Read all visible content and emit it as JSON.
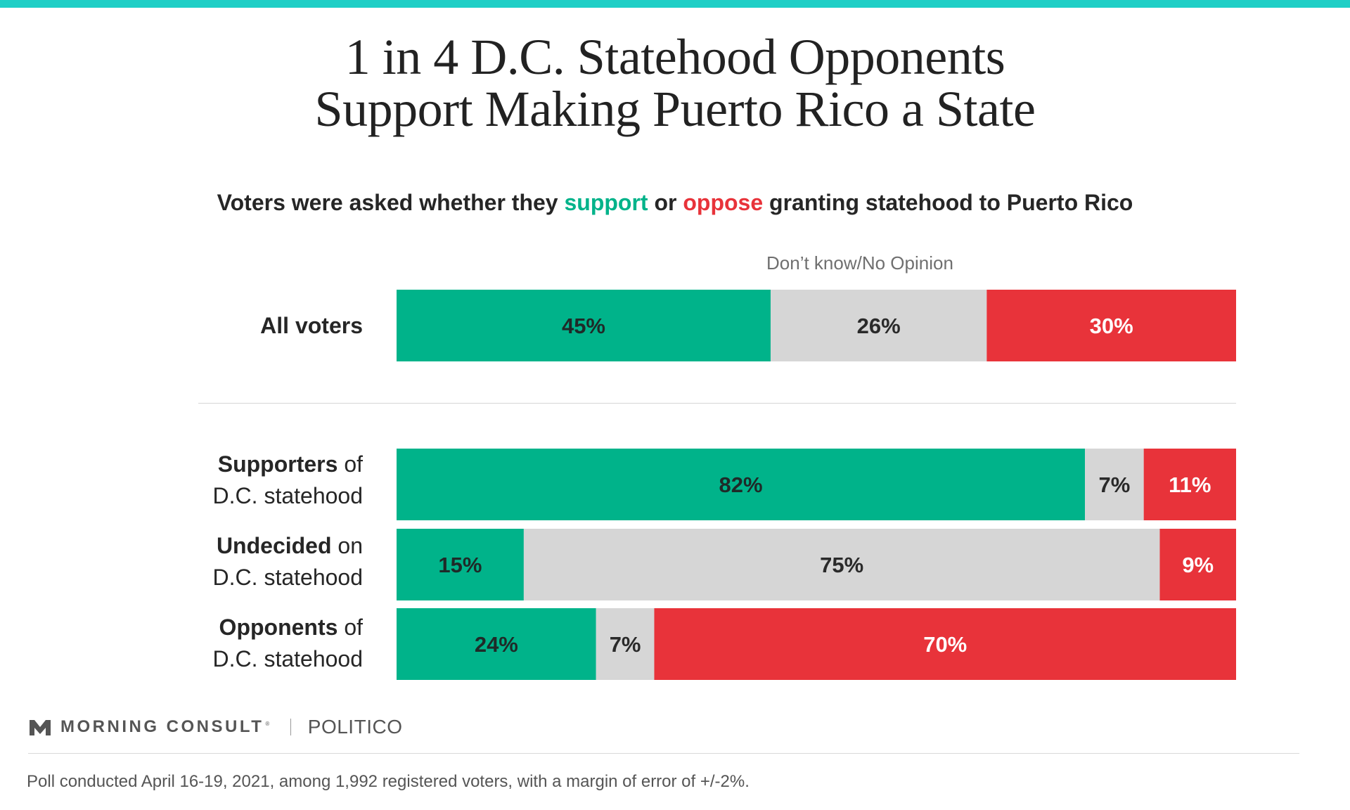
{
  "title_line1": "1 in 4 D.C. Statehood Opponents",
  "title_line2": "Support Making Puerto Rico a State",
  "subtitle": {
    "prefix": "Voters were asked whether they ",
    "support": "support",
    "middle": " or ",
    "oppose": "oppose",
    "suffix": " granting statehood to Puerto Rico"
  },
  "colors": {
    "support": "#00b38a",
    "dont_know": "#d6d6d6",
    "oppose": "#e8333a",
    "accent": "#1fcfc6"
  },
  "chart_data": {
    "type": "bar",
    "orientation": "horizontal",
    "stacked": true,
    "title": "1 in 4 D.C. Statehood Opponents Support Making Puerto Rico a State",
    "subtitle": "Voters were asked whether they support or oppose granting statehood to Puerto Rico",
    "series_legend_label": "Don’t know/No Opinion",
    "categories": [
      {
        "bold": "All voters",
        "rest": "",
        "line2": ""
      },
      {
        "bold": "Supporters",
        "rest": " of",
        "line2": "D.C. statehood"
      },
      {
        "bold": "Undecided",
        "rest": " on",
        "line2": "D.C. statehood"
      },
      {
        "bold": "Opponents",
        "rest": " of",
        "line2": "D.C. statehood"
      }
    ],
    "series": [
      {
        "key": "support",
        "values": [
          45,
          82,
          15,
          24
        ],
        "labels": [
          "45%",
          "82%",
          "15%",
          "24%"
        ]
      },
      {
        "key": "dont_know",
        "values": [
          26,
          7,
          75,
          7
        ],
        "labels": [
          "26%",
          "7%",
          "75%",
          "7%"
        ]
      },
      {
        "key": "oppose",
        "values": [
          30,
          11,
          9,
          70
        ],
        "labels": [
          "30%",
          "11%",
          "9%",
          "70%"
        ]
      }
    ]
  },
  "footer": {
    "logo_text": "MORNING CONSULT",
    "logo_mark": "®",
    "partner": "POLITICO",
    "note": "Poll conducted April 16-19, 2021, among 1,992 registered voters, with a margin of error of +/-2%."
  }
}
